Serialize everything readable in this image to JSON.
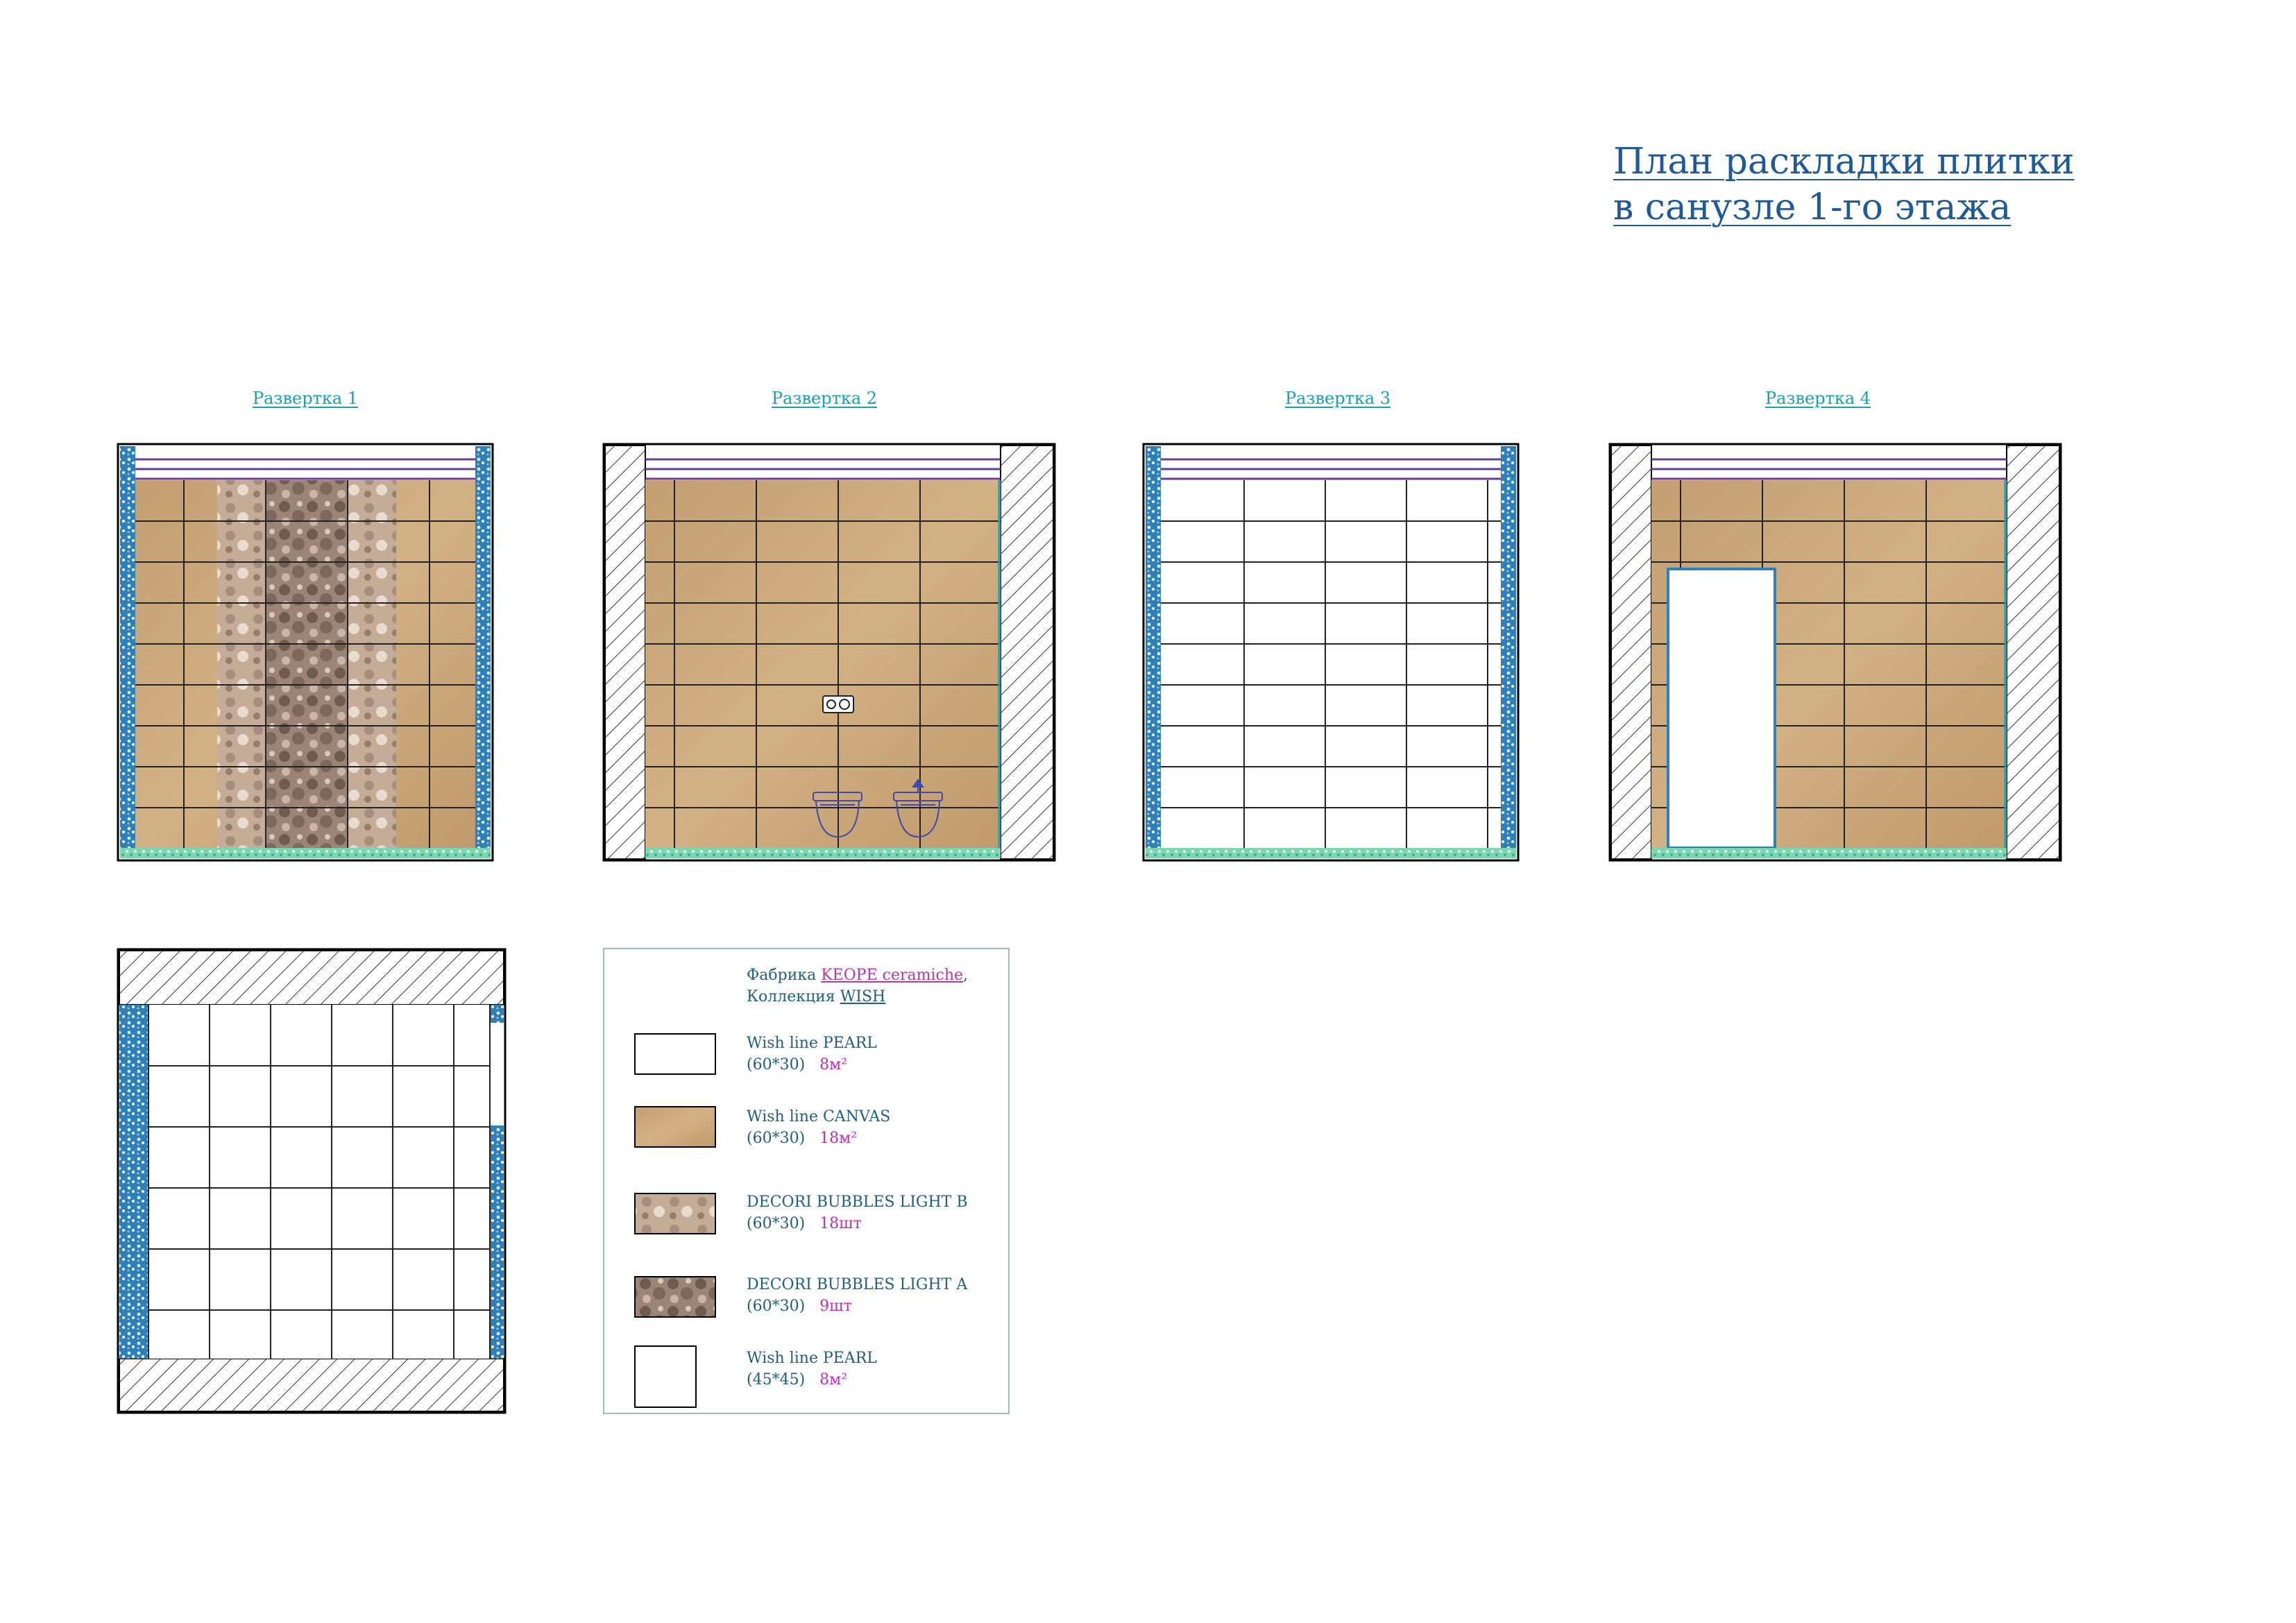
{
  "title": {
    "line1": "План раскладки плитки",
    "line2": "в санузле 1-го этажа"
  },
  "elevations": [
    {
      "label": "Развертка 1"
    },
    {
      "label": "Развертка 2"
    },
    {
      "label": "Развертка 3"
    },
    {
      "label": "Развертка 4"
    }
  ],
  "legend": {
    "factory_label": "Фабрика",
    "factory_name": "KEOPE ceramiche",
    "factory_suffix": ",",
    "collection_label": "Коллекция",
    "collection_name": "WISH",
    "items": [
      {
        "name": "Wish line PEARL",
        "size": "(60*30)",
        "qty": "8м²"
      },
      {
        "name": "Wish line CANVAS",
        "size": "(60*30)",
        "qty": "18м²"
      },
      {
        "name": "DECORI BUBBLES LIGHT B",
        "size": "(60*30)",
        "qty": "18шт"
      },
      {
        "name": "DECORI BUBBLES LIGHT  A",
        "size": "(60*30)",
        "qty": "9шт"
      },
      {
        "name": "Wish line PEARL",
        "size": "(45*45)",
        "qty": "8м²"
      }
    ]
  },
  "colors": {
    "canvas_tile": "#c8a678",
    "pearl_tile": "#ffffff",
    "decor_a": "#8a7468",
    "decor_b": "#b9a08c",
    "title": "#1e5a9a",
    "caption": "#18a0b4",
    "mosaic_blue": "#2f7fb8",
    "mosaic_green": "#7ad6b0",
    "frieze": "#6a3a9a"
  }
}
